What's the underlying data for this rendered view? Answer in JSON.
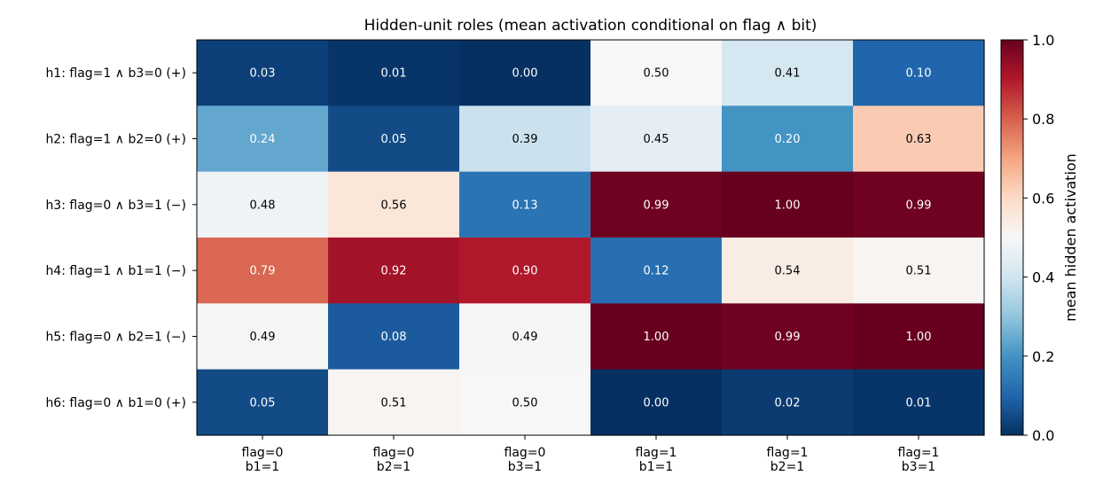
{
  "chart_data": {
    "type": "heatmap",
    "title": "Hidden-unit roles  (mean activation conditional on flag ∧ bit)",
    "rows": [
      "h1: flag=1 ∧ b3=0  (+)",
      "h2: flag=1 ∧ b2=0  (+)",
      "h3: flag=0 ∧ b3=1  (−)",
      "h4: flag=1 ∧ b1=1  (−)",
      "h5: flag=0 ∧ b2=1  (−)",
      "h6: flag=0 ∧ b1=0  (+)"
    ],
    "columns": [
      [
        "flag=0",
        "b1=1"
      ],
      [
        "flag=0",
        "b2=1"
      ],
      [
        "flag=0",
        "b3=1"
      ],
      [
        "flag=1",
        "b1=1"
      ],
      [
        "flag=1",
        "b2=1"
      ],
      [
        "flag=1",
        "b3=1"
      ]
    ],
    "values": [
      [
        0.03,
        0.01,
        0.0,
        0.5,
        0.41,
        0.1
      ],
      [
        0.24,
        0.05,
        0.39,
        0.45,
        0.2,
        0.63
      ],
      [
        0.48,
        0.56,
        0.13,
        0.99,
        1.0,
        0.99
      ],
      [
        0.79,
        0.92,
        0.9,
        0.12,
        0.54,
        0.51
      ],
      [
        0.49,
        0.08,
        0.49,
        1.0,
        0.99,
        1.0
      ],
      [
        0.05,
        0.51,
        0.5,
        0.0,
        0.02,
        0.01
      ]
    ],
    "colorbar": {
      "label": "mean hidden activation",
      "range": [
        0.0,
        1.0
      ],
      "ticks": [
        "0.0",
        "0.2",
        "0.4",
        "0.6",
        "0.8",
        "1.0"
      ],
      "colormap": "RdBu_r"
    }
  }
}
